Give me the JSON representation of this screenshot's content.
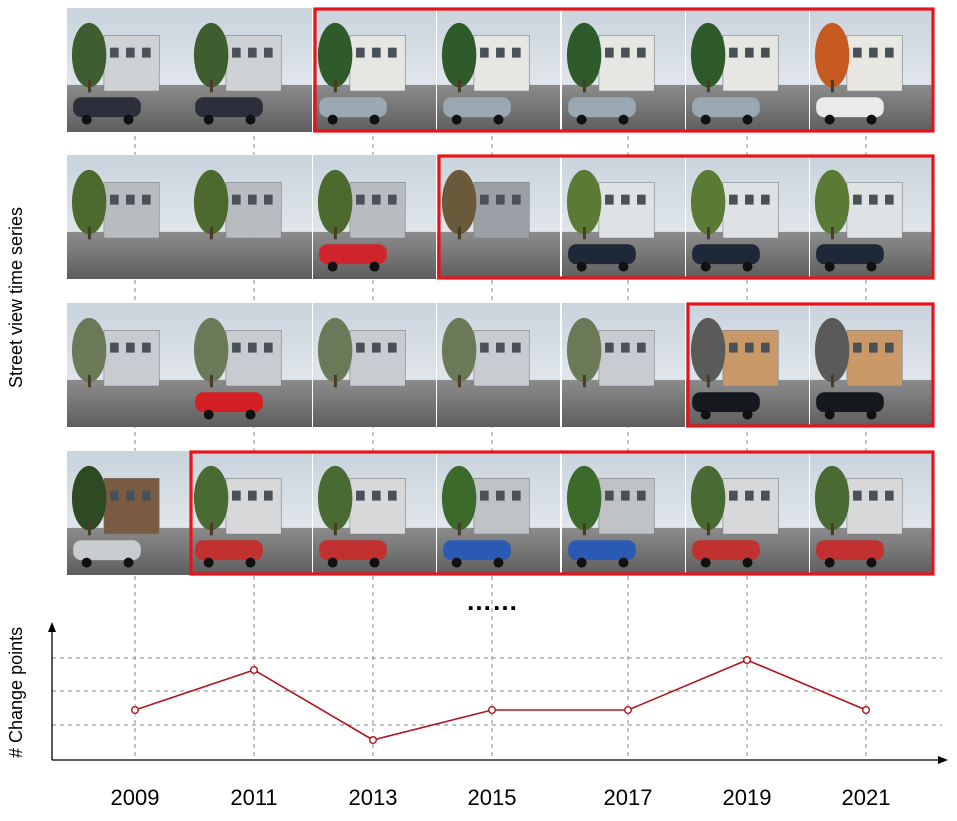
{
  "labels": {
    "street_view_axis": "Street view time series",
    "change_axis": "# Change points",
    "ellipsis": "……"
  },
  "colors": {
    "highlight": "#e8141c",
    "series_line": "#b0141c",
    "grid": "#888888"
  },
  "rows": [
    {
      "frames": [
        "suburban-house-lot",
        "suburban-house-lot",
        "new-townhouses",
        "new-townhouses",
        "new-townhouses",
        "new-townhouses",
        "new-townhouses-autumn"
      ],
      "changed_from": 2
    },
    {
      "frames": [
        "vegetated-lot",
        "vegetated-lot",
        "vegetated-lot-red-car",
        "construction-site",
        "new-apartments",
        "new-apartments",
        "new-apartments"
      ],
      "changed_from": 3
    },
    {
      "frames": [
        "street-houses",
        "street-houses-red-truck",
        "street-houses",
        "street-houses",
        "street-houses",
        "new-boxy-building",
        "new-boxy-building"
      ],
      "changed_from": 5
    },
    {
      "frames": [
        "tree-and-fence",
        "new-condos",
        "new-condos",
        "new-condos-trees",
        "new-condos-trees",
        "new-condos",
        "new-condos"
      ],
      "changed_from": 1
    }
  ],
  "chart_data": {
    "type": "line",
    "x": [
      2009,
      2011,
      2013,
      2015,
      2017,
      2019,
      2021
    ],
    "tick_labels": [
      "2009",
      "2011",
      "2013",
      "2015",
      "2017",
      "2019",
      "2021"
    ],
    "ylabel": "# Change points",
    "values": [
      2.5,
      3.5,
      1.75,
      2.5,
      2.5,
      3.75,
      2.5
    ],
    "ylim": [
      1.5,
      4
    ],
    "gridlines": [
      2.5,
      3.5,
      4.5
    ],
    "grid": true
  }
}
